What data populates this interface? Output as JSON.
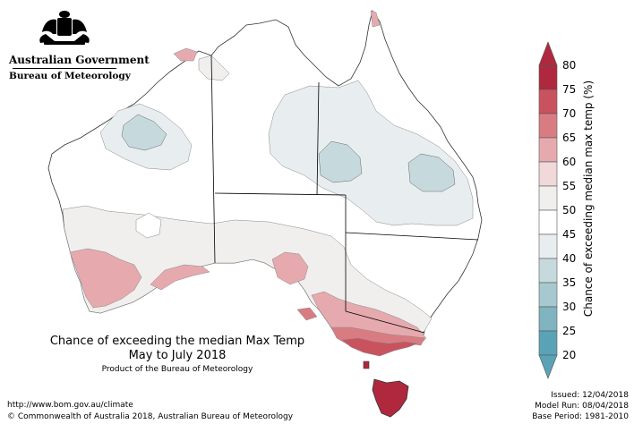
{
  "logo": {
    "icon": "coat-of-arms-icon",
    "government": "Australian Government",
    "bureau": "Bureau of Meteorology"
  },
  "title": {
    "line1": "Chance of exceeding the median Max Temp",
    "line2": "May to July 2018",
    "line3": "Product of the Bureau of Meteorology"
  },
  "legend": {
    "title": "Chance of exceeding median max temp (%)",
    "ticks": [
      "80",
      "75",
      "70",
      "65",
      "60",
      "55",
      "50",
      "45",
      "40",
      "35",
      "30",
      "25",
      "20"
    ],
    "bands": [
      {
        "range": "75-80",
        "color": "#b0283e"
      },
      {
        "range": "70-75",
        "color": "#c8535f"
      },
      {
        "range": "65-70",
        "color": "#d97c82"
      },
      {
        "range": "60-65",
        "color": "#e6aaae"
      },
      {
        "range": "55-60",
        "color": "#f1d8d9"
      },
      {
        "range": "50-55",
        "color": "#f0efee"
      },
      {
        "range": "45-50",
        "color": "#ffffff"
      },
      {
        "range": "40-45",
        "color": "#e8eef0"
      },
      {
        "range": "35-40",
        "color": "#c6dadd"
      },
      {
        "range": "30-35",
        "color": "#a6c9cf"
      },
      {
        "range": "25-30",
        "color": "#7fb4c0"
      },
      {
        "range": "20-25",
        "color": "#5aa3b6"
      }
    ]
  },
  "footer": {
    "url": "http://www.bom.gov.au/climate",
    "copyright": "© Commonwealth of Australia 2018, Australian Bureau of Meteorology",
    "issued": "Issued: 12/04/2018",
    "model_run": "Model Run: 08/04/2018",
    "base_period": "Base Period: 1981-2010"
  }
}
